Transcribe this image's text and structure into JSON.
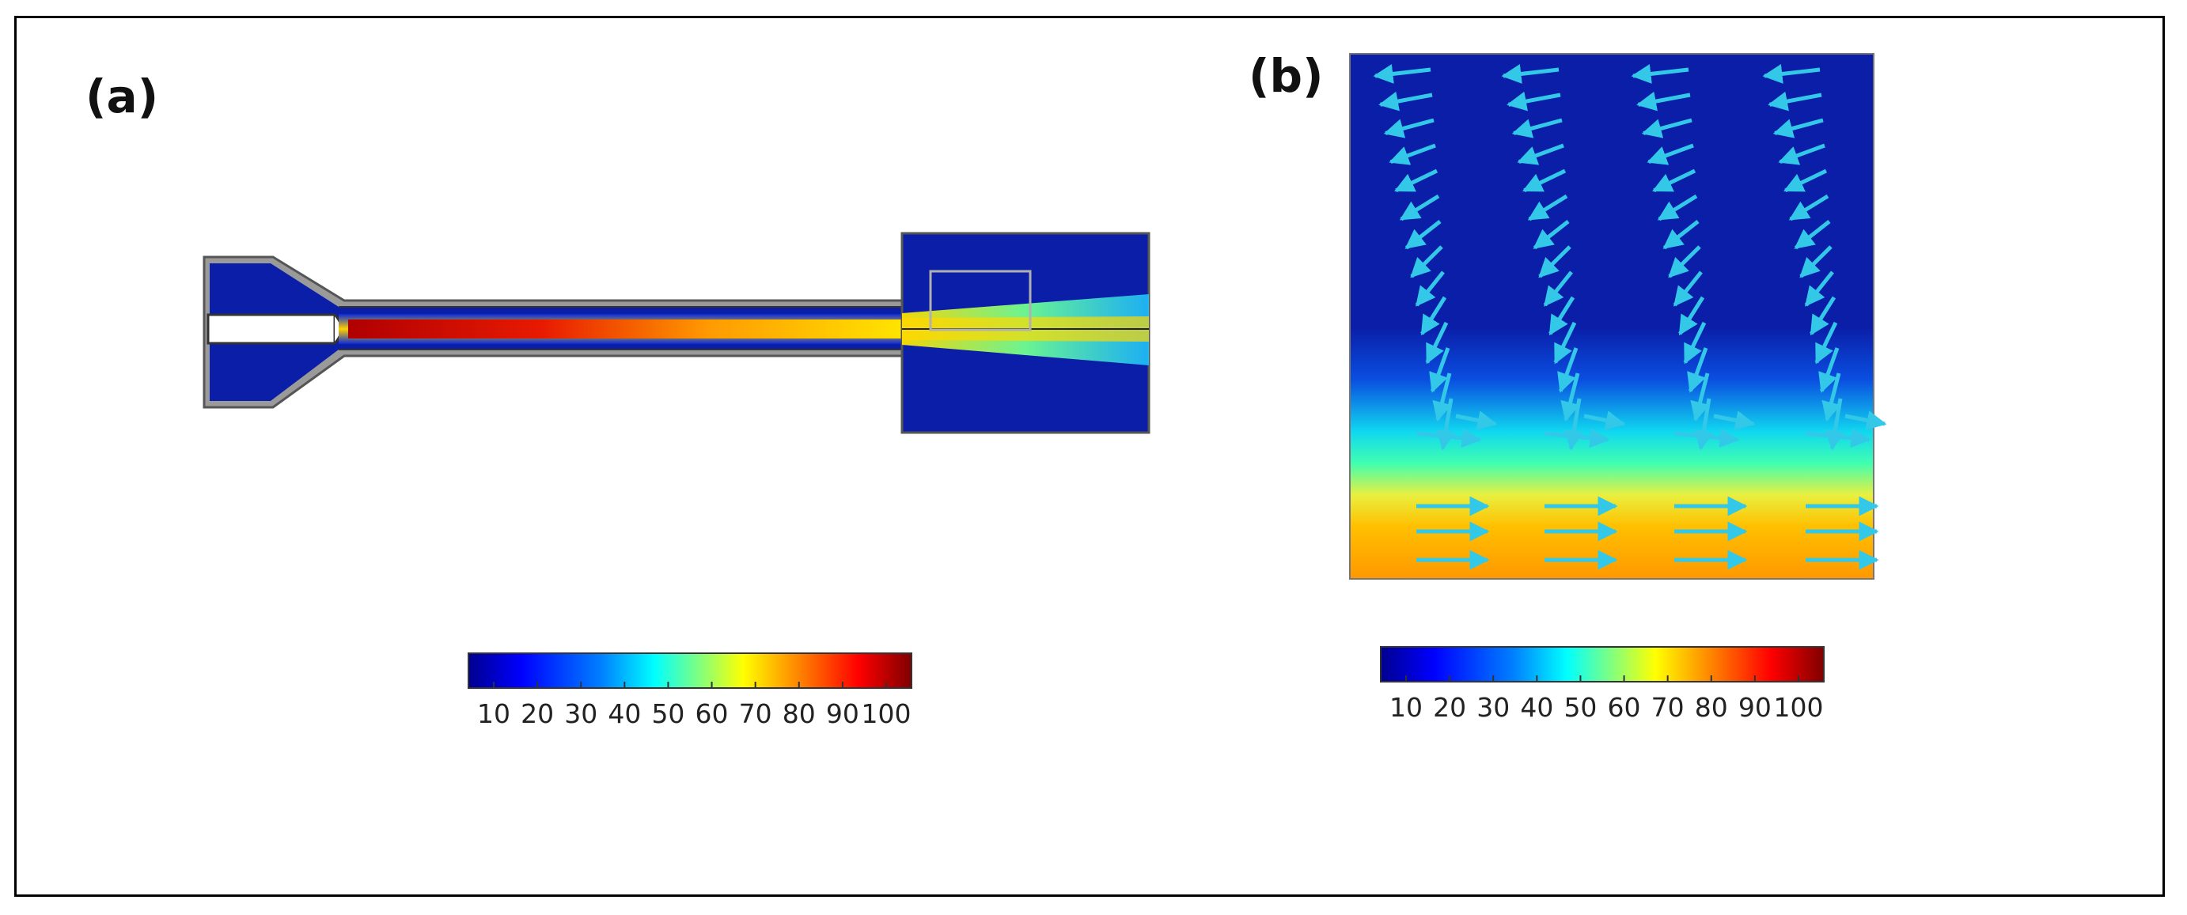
{
  "panels": {
    "a": {
      "label": "(a)"
    },
    "b": {
      "label": "(b)"
    }
  },
  "colorbars": {
    "a": {
      "ticks": [
        "10",
        "20",
        "30",
        "40",
        "50",
        "60",
        "70",
        "80",
        "90",
        "100"
      ]
    },
    "b": {
      "ticks": [
        "10",
        "20",
        "30",
        "40",
        "50",
        "60",
        "70",
        "80",
        "90",
        "100"
      ]
    }
  },
  "colors": {
    "jet_stops": [
      "#00008f",
      "#0000ff",
      "#0080ff",
      "#00ffff",
      "#80ff80",
      "#ffff00",
      "#ff8000",
      "#ff0000",
      "#800000"
    ],
    "domain_background": "#0a1ea8",
    "vector_arrows": "#33c8e8",
    "wall": "#9a9a9a"
  }
}
